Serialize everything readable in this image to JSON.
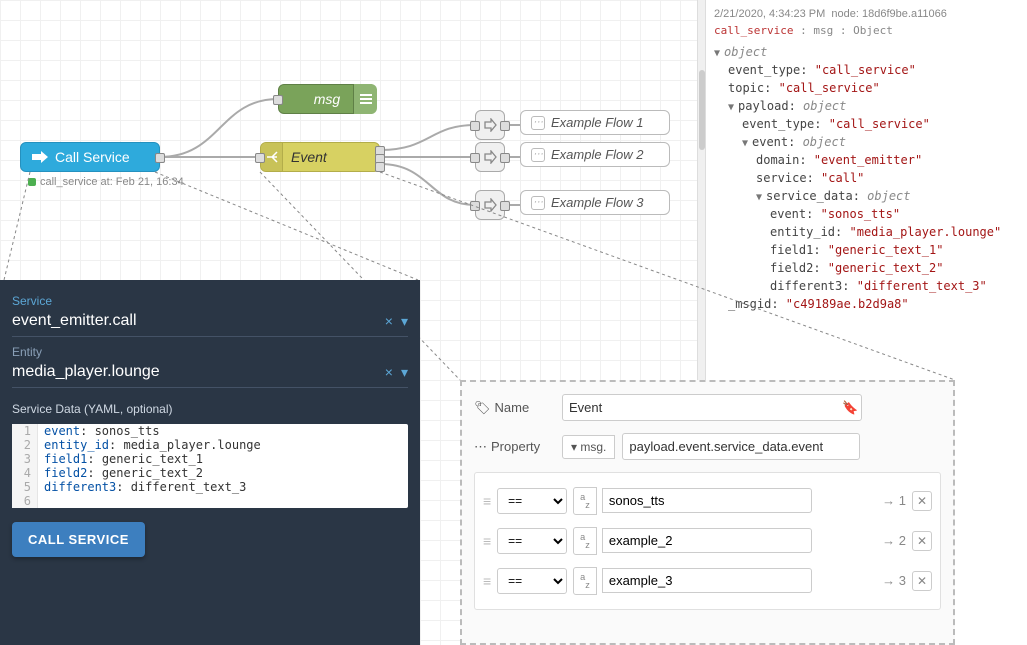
{
  "canvas": {
    "grid_color": "#f0f0f0",
    "grid_size": 20
  },
  "nodes": {
    "call_service": {
      "label": "Call Service",
      "status_text": "call_service at: Feb 21, 16:34",
      "color": "#2eaadc"
    },
    "msg": {
      "label": "msg",
      "color": "#7aa35a"
    },
    "event": {
      "label": "Event",
      "color": "#d7d162"
    },
    "flow1": {
      "label": "Example Flow 1"
    },
    "flow2": {
      "label": "Example Flow 2"
    },
    "flow3": {
      "label": "Example Flow 3"
    }
  },
  "debug": {
    "timestamp": "2/21/2020, 4:34:23 PM",
    "node_id": "18d6f9be.a11066",
    "topic": "call_service",
    "msg_type": "msg : Object",
    "tree": {
      "event_type": "call_service",
      "topic_val": "call_service",
      "payload_event_type": "call_service",
      "domain": "event_emitter",
      "service": "call",
      "sd_event": "sonos_tts",
      "sd_entity": "media_player.lounge",
      "sd_f1": "generic_text_1",
      "sd_f2": "generic_text_2",
      "sd_diff": "different_text_3",
      "msgid": "c49189ae.b2d9a8"
    }
  },
  "service_panel": {
    "service_label": "Service",
    "service_value": "event_emitter.call",
    "entity_label": "Entity",
    "entity_value": "media_player.lounge",
    "data_label": "Service Data (YAML, optional)",
    "yaml": [
      {
        "k": "event",
        "v": "sonos_tts"
      },
      {
        "k": "entity_id",
        "v": "media_player.lounge"
      },
      {
        "k": "field1",
        "v": "generic_text_1"
      },
      {
        "k": "field2",
        "v": "generic_text_2"
      },
      {
        "k": "different3",
        "v": "different_text_3"
      }
    ],
    "button": "CALL SERVICE"
  },
  "config": {
    "name_label": "Name",
    "name_value": "Event",
    "property_label": "Property",
    "property_prefix": "msg.",
    "property_value": "payload.event.service_data.event",
    "rules": [
      {
        "op": "==",
        "type": "az",
        "value": "sonos_tts",
        "out": "1"
      },
      {
        "op": "==",
        "type": "az",
        "value": "example_2",
        "out": "2"
      },
      {
        "op": "==",
        "type": "az",
        "value": "example_3",
        "out": "3"
      }
    ]
  }
}
